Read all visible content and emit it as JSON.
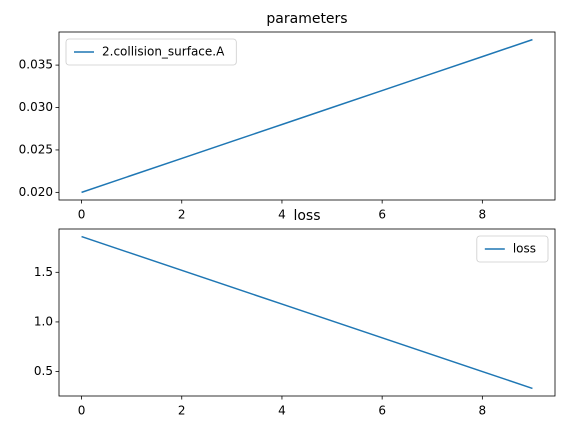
{
  "chart_data": [
    {
      "type": "line",
      "title": "parameters",
      "x": [
        0,
        1,
        2,
        3,
        4,
        5,
        6,
        7,
        8,
        9
      ],
      "series": [
        {
          "name": "2.collision_surface.A",
          "color": "#1f77b4",
          "values": [
            0.02,
            0.022,
            0.024,
            0.026,
            0.028,
            0.03,
            0.032,
            0.034,
            0.036,
            0.038
          ]
        }
      ],
      "xlim": [
        -0.45,
        9.45
      ],
      "xticks": [
        0,
        2,
        4,
        6,
        8
      ],
      "ylim": [
        0.0191,
        0.0389
      ],
      "yticks": [
        {
          "value": 0.02,
          "label": "0.020"
        },
        0.025,
        {
          "value": 0.03,
          "label": "0.030"
        },
        0.035
      ],
      "legend": "upper left"
    },
    {
      "type": "line",
      "title": "loss",
      "x": [
        0,
        1,
        2,
        3,
        4,
        5,
        6,
        7,
        8,
        9
      ],
      "series": [
        {
          "name": "loss",
          "color": "#1f77b4",
          "values": [
            1.86,
            1.69,
            1.52,
            1.35,
            1.18,
            1.01,
            0.84,
            0.67,
            0.5,
            0.33
          ]
        }
      ],
      "xlim": [
        -0.45,
        9.45
      ],
      "xticks": [
        0,
        2,
        4,
        6,
        8
      ],
      "ylim": [
        0.2535,
        1.9365
      ],
      "yticks": [
        0.5,
        {
          "value": 1,
          "label": "1.0"
        },
        1.5
      ],
      "legend": "upper right"
    }
  ]
}
